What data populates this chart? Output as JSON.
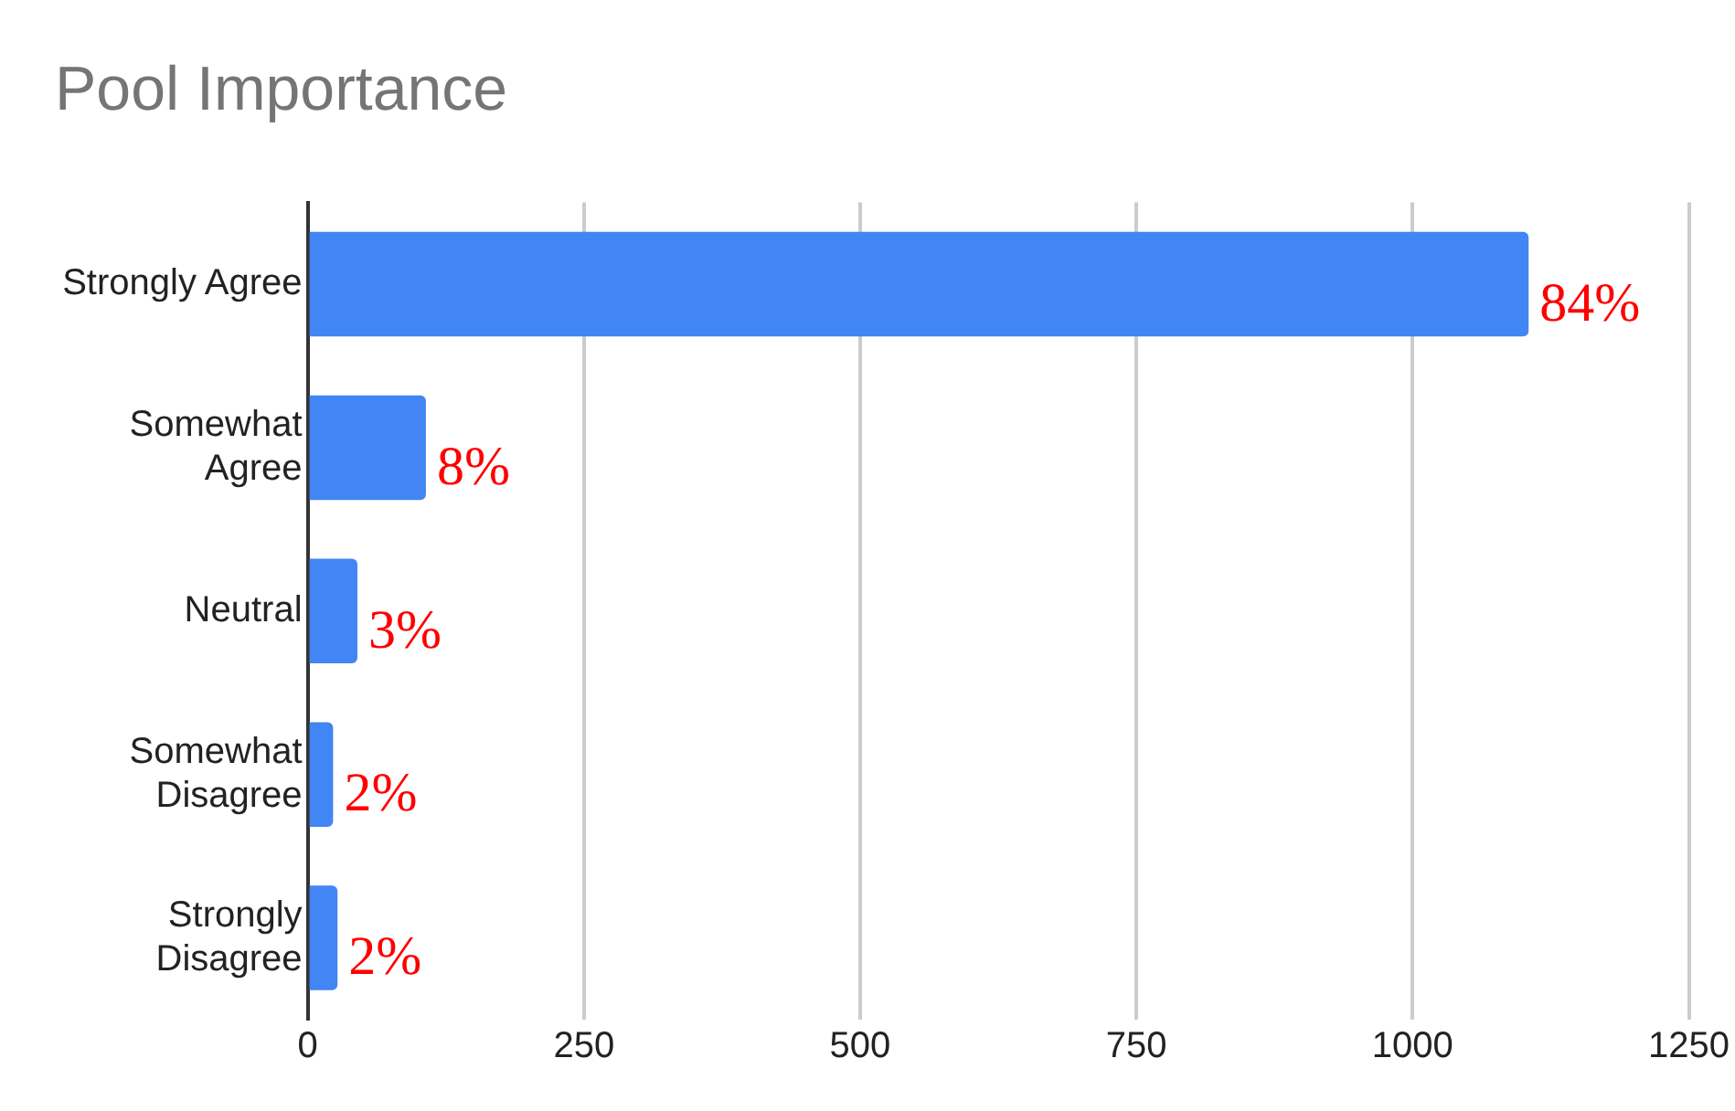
{
  "chart_data": {
    "type": "bar",
    "orientation": "horizontal",
    "title": "Pool Importance",
    "categories": [
      "Strongly Agree",
      "Somewhat\nAgree",
      "Neutral",
      "Somewhat\nDisagree",
      "Strongly\nDisagree"
    ],
    "values": [
      1105,
      107,
      45,
      23,
      27
    ],
    "annotations": [
      "84%",
      "8%",
      "3%",
      "2%",
      "2%"
    ],
    "color": "#4285f4",
    "xlim": [
      0,
      1250
    ],
    "xticks": [
      0,
      250,
      500,
      750,
      1000,
      1250
    ],
    "grid": "x",
    "legend": false
  }
}
